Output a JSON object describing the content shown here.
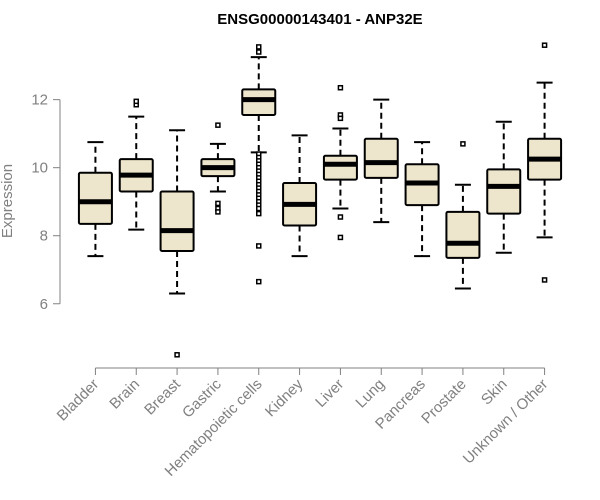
{
  "chart_data": {
    "type": "boxplot",
    "title": "ENSG00000143401 - ANP32E",
    "xlabel": "",
    "ylabel": "Expression",
    "ylim": [
      4.2,
      13.9
    ],
    "yticks": [
      6,
      8,
      10,
      12
    ],
    "grid": false,
    "legend": "none",
    "box_fill": "#ede6cc",
    "categories": [
      "Bladder",
      "Brain",
      "Breast",
      "Gastric",
      "Hematopoietic cells",
      "Kidney",
      "Liver",
      "Lung",
      "Pancreas",
      "Prostate",
      "Skin",
      "Unknown / Other"
    ],
    "boxes": [
      {
        "q1": 8.35,
        "median": 9.0,
        "q3": 9.85,
        "whisker_low": 7.4,
        "whisker_high": 10.75,
        "outliers": []
      },
      {
        "q1": 9.3,
        "median": 9.78,
        "q3": 10.25,
        "whisker_low": 8.18,
        "whisker_high": 11.5,
        "outliers": [
          11.85,
          11.95
        ]
      },
      {
        "q1": 7.55,
        "median": 8.15,
        "q3": 9.3,
        "whisker_low": 6.3,
        "whisker_high": 11.1,
        "outliers": [
          4.5
        ]
      },
      {
        "q1": 9.75,
        "median": 10.0,
        "q3": 10.25,
        "whisker_low": 9.3,
        "whisker_high": 10.7,
        "outliers": [
          11.25,
          8.95,
          8.8,
          8.7
        ]
      },
      {
        "q1": 11.55,
        "median": 12.0,
        "q3": 12.3,
        "whisker_low": 10.45,
        "whisker_high": 13.25,
        "outliers": [
          13.55,
          13.4,
          10.4,
          10.3,
          10.2,
          10.1,
          10.0,
          9.9,
          9.8,
          9.7,
          9.6,
          9.5,
          9.4,
          9.3,
          9.2,
          9.1,
          9.0,
          8.9,
          8.8,
          8.65,
          7.7,
          6.65
        ]
      },
      {
        "q1": 8.3,
        "median": 8.92,
        "q3": 9.55,
        "whisker_low": 7.4,
        "whisker_high": 10.95,
        "outliers": []
      },
      {
        "q1": 9.65,
        "median": 10.1,
        "q3": 10.35,
        "whisker_low": 8.8,
        "whisker_high": 11.15,
        "outliers": [
          12.35,
          11.55,
          11.45,
          8.55,
          7.95
        ]
      },
      {
        "q1": 9.7,
        "median": 10.15,
        "q3": 10.85,
        "whisker_low": 8.4,
        "whisker_high": 12.0,
        "outliers": []
      },
      {
        "q1": 8.9,
        "median": 9.55,
        "q3": 10.1,
        "whisker_low": 7.4,
        "whisker_high": 10.75,
        "outliers": []
      },
      {
        "q1": 7.35,
        "median": 7.78,
        "q3": 8.7,
        "whisker_low": 6.45,
        "whisker_high": 9.5,
        "outliers": [
          10.7
        ]
      },
      {
        "q1": 8.65,
        "median": 9.45,
        "q3": 9.95,
        "whisker_low": 7.5,
        "whisker_high": 11.35,
        "outliers": []
      },
      {
        "q1": 9.65,
        "median": 10.25,
        "q3": 10.85,
        "whisker_low": 7.95,
        "whisker_high": 12.5,
        "outliers": [
          13.6,
          6.7
        ]
      }
    ]
  }
}
